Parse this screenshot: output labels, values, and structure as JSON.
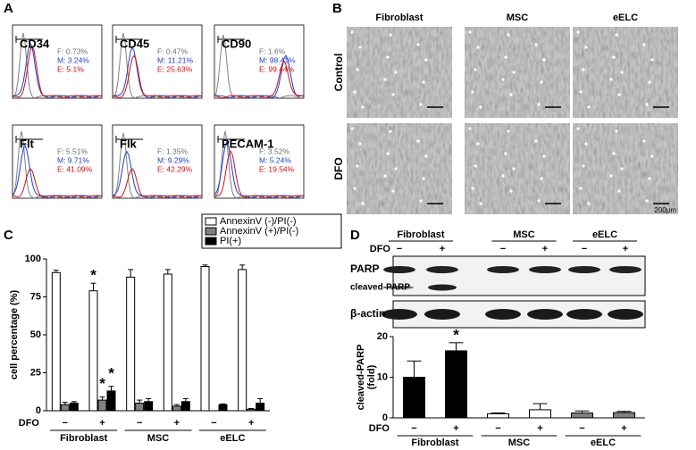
{
  "panel_labels": [
    "A",
    "B",
    "C",
    "D"
  ],
  "flow": [
    {
      "marker": "CD34",
      "lines": [
        "F: 0.73%",
        "M: 3.24%",
        "E: 5.1%"
      ]
    },
    {
      "marker": "CD45",
      "lines": [
        "F: 0.47%",
        "M: 11.21%",
        "E: 25.63%"
      ]
    },
    {
      "marker": "CD90",
      "lines": [
        "F: 1.6%",
        "M: 98.41%",
        "E: 99.44%"
      ]
    },
    {
      "marker": "Flt",
      "lines": [
        "F: 5.51%",
        "M: 9.71%",
        "E: 41.09%"
      ]
    },
    {
      "marker": "Flk",
      "lines": [
        "F: 1.35%",
        "M: 9.29%",
        "E: 42.29%"
      ]
    },
    {
      "marker": "PECAM-1",
      "lines": [
        "F: 3.52%",
        "M: 5.24%",
        "E: 19.54%"
      ]
    }
  ],
  "micrographs": {
    "columns": [
      "Fibroblast",
      "MSC",
      "eELC"
    ],
    "rows": [
      "Control",
      "DFO"
    ],
    "scale_bar": "200μm"
  },
  "blot": {
    "groups": [
      "Fibroblast",
      "MSC",
      "eELC"
    ],
    "row_label": "DFO",
    "lanes": [
      "−",
      "+",
      "−",
      "+",
      "−",
      "+"
    ],
    "bands": [
      "PARP",
      "cleaved-PARP",
      "β-actin"
    ]
  },
  "chart_data": [
    {
      "type": "bar",
      "y_label": [
        "cell percentage (%)"
      ],
      "x_row_label": "DFO",
      "categories": [
        "−",
        "+",
        "−",
        "+",
        "−",
        "+"
      ],
      "groups": [
        "Fibroblast",
        "MSC",
        "eELC"
      ],
      "ylim": [
        0,
        100
      ],
      "yticks": [
        0,
        25,
        50,
        75,
        100
      ],
      "legend": "upper right",
      "series": [
        {
          "name": "AnnexinV (-)/PI(-)",
          "color": "#ffffff",
          "values": [
            91,
            79,
            88,
            90,
            95,
            93
          ],
          "errors": [
            1.5,
            5,
            5,
            3,
            1,
            3
          ]
        },
        {
          "name": "AnnexinV (+)/PI(-)",
          "color": "#808080",
          "values": [
            4,
            7,
            5,
            3,
            0,
            1
          ],
          "errors": [
            1.5,
            2,
            2,
            1,
            0,
            0.5
          ]
        },
        {
          "name": "PI(+)",
          "color": "#000000",
          "values": [
            5,
            13,
            6,
            6,
            4,
            5
          ],
          "errors": [
            1,
            3,
            2,
            2,
            0.5,
            3
          ]
        }
      ],
      "annotations": [
        {
          "text": "*",
          "series": 0,
          "category": 1
        },
        {
          "text": "*",
          "series": 1,
          "category": 1
        },
        {
          "text": "*",
          "series": 2,
          "category": 1
        }
      ]
    },
    {
      "type": "bar",
      "y_label": [
        "cleaved-PARP",
        "(fold)"
      ],
      "x_row_label": "DFO",
      "categories": [
        "−",
        "+",
        "−",
        "+",
        "−",
        "+"
      ],
      "groups": [
        "Fibroblast",
        "MSC",
        "eELC"
      ],
      "ylim": [
        0,
        20
      ],
      "yticks": [
        0,
        10,
        20
      ],
      "values": [
        10,
        16.5,
        1,
        2,
        1.2,
        1.3
      ],
      "errors": [
        4,
        2,
        0.2,
        1.5,
        0.5,
        0.3
      ],
      "colors": [
        "#000000",
        "#000000",
        "#ffffff",
        "#ffffff",
        "#808080",
        "#808080"
      ],
      "annotations": [
        {
          "text": "*",
          "category": 1
        }
      ]
    }
  ]
}
